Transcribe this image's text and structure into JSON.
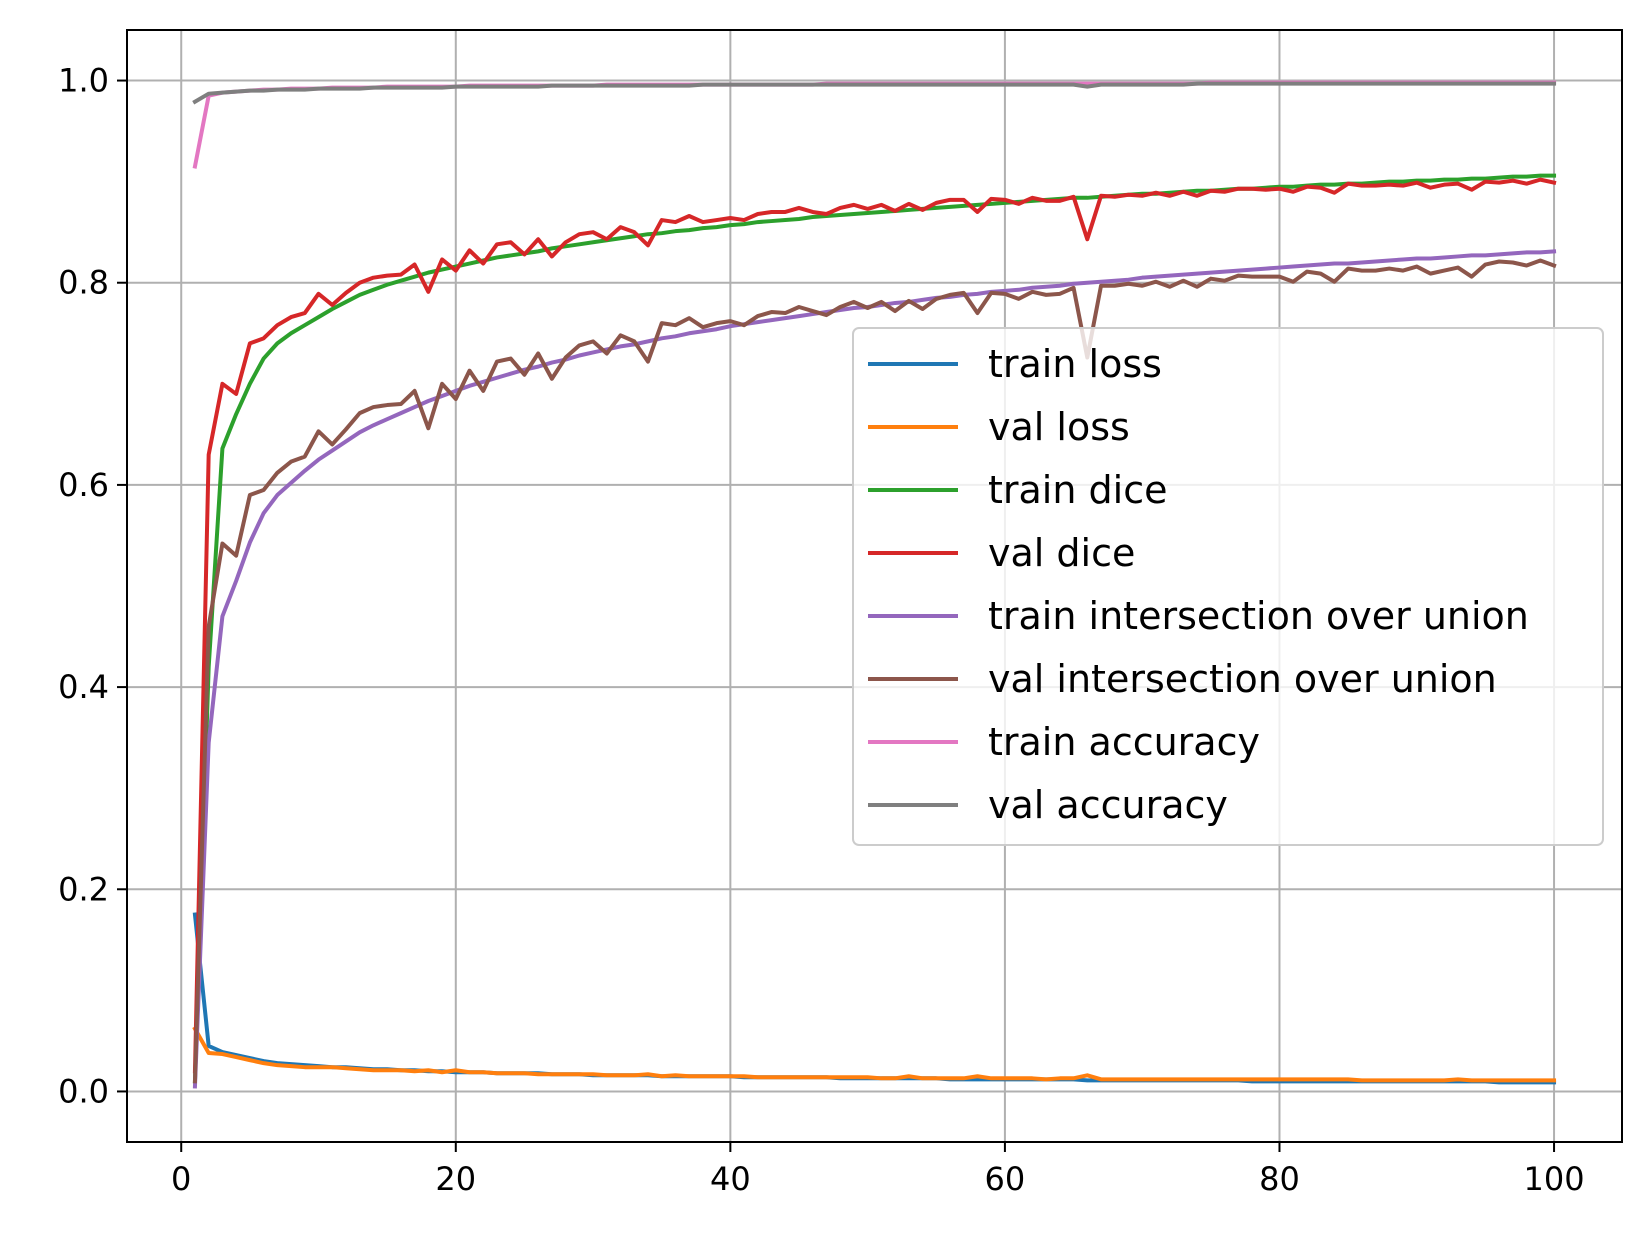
{
  "chart_data": {
    "type": "line",
    "title": "",
    "xlabel": "",
    "ylabel": "",
    "xlim": [
      -3.95,
      104.95
    ],
    "ylim": [
      -0.05,
      1.05
    ],
    "xticks": [
      0,
      20,
      40,
      60,
      80,
      100
    ],
    "xtick_labels": [
      "0",
      "20",
      "40",
      "60",
      "80",
      "100"
    ],
    "yticks": [
      0.0,
      0.2,
      0.4,
      0.6,
      0.8,
      1.0
    ],
    "ytick_labels": [
      "0.0",
      "0.2",
      "0.4",
      "0.6",
      "0.8",
      "1.0"
    ],
    "grid": true,
    "legend_position": "center-right",
    "x": [
      1,
      2,
      3,
      4,
      5,
      6,
      7,
      8,
      9,
      10,
      11,
      12,
      13,
      14,
      15,
      16,
      17,
      18,
      19,
      20,
      21,
      22,
      23,
      24,
      25,
      26,
      27,
      28,
      29,
      30,
      31,
      32,
      33,
      34,
      35,
      36,
      37,
      38,
      39,
      40,
      41,
      42,
      43,
      44,
      45,
      46,
      47,
      48,
      49,
      50,
      51,
      52,
      53,
      54,
      55,
      56,
      57,
      58,
      59,
      60,
      61,
      62,
      63,
      64,
      65,
      66,
      67,
      68,
      69,
      70,
      71,
      72,
      73,
      74,
      75,
      76,
      77,
      78,
      79,
      80,
      81,
      82,
      83,
      84,
      85,
      86,
      87,
      88,
      89,
      90,
      91,
      92,
      93,
      94,
      95,
      96,
      97,
      98,
      99,
      100
    ],
    "series": [
      {
        "name": "train loss",
        "color": "#1f77b4",
        "values": [
          0.175,
          0.045,
          0.039,
          0.036,
          0.033,
          0.03,
          0.028,
          0.027,
          0.026,
          0.025,
          0.024,
          0.024,
          0.023,
          0.022,
          0.022,
          0.021,
          0.021,
          0.02,
          0.02,
          0.019,
          0.019,
          0.019,
          0.018,
          0.018,
          0.018,
          0.018,
          0.017,
          0.017,
          0.017,
          0.016,
          0.016,
          0.016,
          0.016,
          0.016,
          0.015,
          0.015,
          0.015,
          0.015,
          0.015,
          0.015,
          0.014,
          0.014,
          0.014,
          0.014,
          0.014,
          0.014,
          0.014,
          0.013,
          0.013,
          0.013,
          0.013,
          0.013,
          0.013,
          0.013,
          0.013,
          0.012,
          0.012,
          0.012,
          0.012,
          0.012,
          0.012,
          0.012,
          0.012,
          0.012,
          0.012,
          0.011,
          0.011,
          0.011,
          0.011,
          0.011,
          0.011,
          0.011,
          0.011,
          0.011,
          0.011,
          0.011,
          0.011,
          0.01,
          0.01,
          0.01,
          0.01,
          0.01,
          0.01,
          0.01,
          0.01,
          0.01,
          0.01,
          0.01,
          0.01,
          0.01,
          0.01,
          0.01,
          0.01,
          0.01,
          0.01,
          0.009,
          0.009,
          0.009,
          0.009,
          0.009
        ]
      },
      {
        "name": "val loss",
        "color": "#ff7f0e",
        "values": [
          0.062,
          0.038,
          0.037,
          0.034,
          0.031,
          0.028,
          0.026,
          0.025,
          0.024,
          0.024,
          0.024,
          0.023,
          0.022,
          0.021,
          0.021,
          0.021,
          0.02,
          0.021,
          0.019,
          0.021,
          0.019,
          0.019,
          0.018,
          0.018,
          0.018,
          0.017,
          0.017,
          0.017,
          0.017,
          0.017,
          0.016,
          0.016,
          0.016,
          0.017,
          0.015,
          0.016,
          0.015,
          0.015,
          0.015,
          0.015,
          0.015,
          0.014,
          0.014,
          0.014,
          0.014,
          0.014,
          0.014,
          0.014,
          0.014,
          0.014,
          0.013,
          0.013,
          0.015,
          0.013,
          0.013,
          0.013,
          0.013,
          0.015,
          0.013,
          0.013,
          0.013,
          0.013,
          0.012,
          0.013,
          0.013,
          0.016,
          0.012,
          0.012,
          0.012,
          0.012,
          0.012,
          0.012,
          0.012,
          0.012,
          0.012,
          0.012,
          0.012,
          0.012,
          0.012,
          0.012,
          0.012,
          0.012,
          0.012,
          0.012,
          0.012,
          0.011,
          0.011,
          0.011,
          0.011,
          0.011,
          0.011,
          0.011,
          0.012,
          0.011,
          0.011,
          0.011,
          0.011,
          0.011,
          0.011,
          0.011
        ]
      },
      {
        "name": "train dice",
        "color": "#2ca02c",
        "values": [
          0.01,
          0.42,
          0.636,
          0.67,
          0.7,
          0.725,
          0.74,
          0.75,
          0.758,
          0.766,
          0.774,
          0.781,
          0.788,
          0.793,
          0.798,
          0.802,
          0.806,
          0.81,
          0.813,
          0.816,
          0.819,
          0.822,
          0.825,
          0.827,
          0.829,
          0.831,
          0.834,
          0.836,
          0.838,
          0.84,
          0.842,
          0.844,
          0.846,
          0.848,
          0.849,
          0.851,
          0.852,
          0.854,
          0.855,
          0.857,
          0.858,
          0.86,
          0.861,
          0.862,
          0.863,
          0.865,
          0.866,
          0.867,
          0.868,
          0.869,
          0.87,
          0.871,
          0.872,
          0.873,
          0.874,
          0.875,
          0.876,
          0.877,
          0.878,
          0.879,
          0.88,
          0.881,
          0.882,
          0.883,
          0.884,
          0.884,
          0.885,
          0.886,
          0.887,
          0.888,
          0.888,
          0.889,
          0.89,
          0.891,
          0.891,
          0.892,
          0.893,
          0.893,
          0.894,
          0.895,
          0.895,
          0.896,
          0.897,
          0.897,
          0.898,
          0.898,
          0.899,
          0.9,
          0.9,
          0.901,
          0.901,
          0.902,
          0.902,
          0.903,
          0.903,
          0.904,
          0.905,
          0.905,
          0.906,
          0.906
        ]
      },
      {
        "name": "val dice",
        "color": "#d62728",
        "values": [
          0.02,
          0.63,
          0.7,
          0.69,
          0.74,
          0.745,
          0.758,
          0.766,
          0.77,
          0.789,
          0.778,
          0.79,
          0.8,
          0.805,
          0.807,
          0.808,
          0.818,
          0.791,
          0.823,
          0.812,
          0.832,
          0.819,
          0.838,
          0.84,
          0.828,
          0.843,
          0.826,
          0.84,
          0.848,
          0.85,
          0.843,
          0.855,
          0.85,
          0.837,
          0.862,
          0.86,
          0.866,
          0.86,
          0.862,
          0.864,
          0.862,
          0.868,
          0.87,
          0.87,
          0.874,
          0.87,
          0.868,
          0.874,
          0.877,
          0.873,
          0.877,
          0.871,
          0.878,
          0.872,
          0.879,
          0.882,
          0.882,
          0.87,
          0.883,
          0.882,
          0.878,
          0.884,
          0.881,
          0.881,
          0.885,
          0.843,
          0.886,
          0.885,
          0.887,
          0.886,
          0.889,
          0.886,
          0.89,
          0.886,
          0.891,
          0.89,
          0.893,
          0.893,
          0.892,
          0.893,
          0.89,
          0.895,
          0.894,
          0.889,
          0.898,
          0.896,
          0.896,
          0.897,
          0.896,
          0.899,
          0.894,
          0.897,
          0.898,
          0.892,
          0.9,
          0.899,
          0.901,
          0.898,
          0.902,
          0.899
        ]
      },
      {
        "name": "train intersection over union",
        "color": "#9467bd",
        "values": [
          0.005,
          0.345,
          0.47,
          0.505,
          0.543,
          0.572,
          0.59,
          0.602,
          0.614,
          0.625,
          0.634,
          0.643,
          0.652,
          0.659,
          0.665,
          0.671,
          0.677,
          0.683,
          0.688,
          0.693,
          0.698,
          0.702,
          0.706,
          0.71,
          0.714,
          0.717,
          0.721,
          0.724,
          0.728,
          0.731,
          0.734,
          0.737,
          0.739,
          0.742,
          0.745,
          0.747,
          0.75,
          0.752,
          0.754,
          0.757,
          0.759,
          0.761,
          0.763,
          0.765,
          0.767,
          0.769,
          0.771,
          0.773,
          0.775,
          0.776,
          0.778,
          0.78,
          0.781,
          0.783,
          0.785,
          0.786,
          0.788,
          0.789,
          0.791,
          0.792,
          0.793,
          0.795,
          0.796,
          0.797,
          0.799,
          0.8,
          0.801,
          0.802,
          0.803,
          0.805,
          0.806,
          0.807,
          0.808,
          0.809,
          0.81,
          0.811,
          0.812,
          0.813,
          0.814,
          0.815,
          0.816,
          0.817,
          0.818,
          0.819,
          0.819,
          0.82,
          0.821,
          0.822,
          0.823,
          0.824,
          0.824,
          0.825,
          0.826,
          0.827,
          0.827,
          0.828,
          0.829,
          0.83,
          0.83,
          0.831
        ]
      },
      {
        "name": "val intersection over union",
        "color": "#8c564b",
        "values": [
          0.01,
          0.46,
          0.542,
          0.53,
          0.59,
          0.595,
          0.612,
          0.623,
          0.628,
          0.653,
          0.64,
          0.655,
          0.671,
          0.677,
          0.679,
          0.68,
          0.693,
          0.656,
          0.7,
          0.685,
          0.713,
          0.693,
          0.722,
          0.725,
          0.709,
          0.73,
          0.705,
          0.726,
          0.738,
          0.742,
          0.73,
          0.748,
          0.742,
          0.722,
          0.76,
          0.758,
          0.765,
          0.756,
          0.76,
          0.762,
          0.758,
          0.767,
          0.771,
          0.77,
          0.776,
          0.772,
          0.768,
          0.776,
          0.781,
          0.775,
          0.781,
          0.772,
          0.782,
          0.774,
          0.784,
          0.788,
          0.79,
          0.77,
          0.79,
          0.789,
          0.784,
          0.791,
          0.788,
          0.789,
          0.795,
          0.726,
          0.797,
          0.797,
          0.799,
          0.797,
          0.801,
          0.796,
          0.802,
          0.796,
          0.804,
          0.802,
          0.807,
          0.806,
          0.806,
          0.806,
          0.801,
          0.811,
          0.809,
          0.801,
          0.814,
          0.812,
          0.812,
          0.814,
          0.812,
          0.816,
          0.809,
          0.812,
          0.815,
          0.806,
          0.818,
          0.821,
          0.82,
          0.817,
          0.822,
          0.817
        ]
      },
      {
        "name": "train accuracy",
        "color": "#e377c2",
        "values": [
          0.915,
          0.985,
          0.988,
          0.989,
          0.99,
          0.991,
          0.991,
          0.992,
          0.992,
          0.992,
          0.993,
          0.993,
          0.993,
          0.993,
          0.994,
          0.994,
          0.994,
          0.994,
          0.994,
          0.994,
          0.995,
          0.995,
          0.995,
          0.995,
          0.995,
          0.995,
          0.995,
          0.995,
          0.995,
          0.995,
          0.996,
          0.996,
          0.996,
          0.996,
          0.996,
          0.996,
          0.996,
          0.996,
          0.996,
          0.996,
          0.996,
          0.996,
          0.996,
          0.996,
          0.996,
          0.996,
          0.997,
          0.997,
          0.997,
          0.997,
          0.997,
          0.997,
          0.997,
          0.997,
          0.997,
          0.997,
          0.997,
          0.997,
          0.997,
          0.997,
          0.997,
          0.997,
          0.997,
          0.997,
          0.997,
          0.997,
          0.997,
          0.997,
          0.997,
          0.997,
          0.997,
          0.997,
          0.997,
          0.997,
          0.998,
          0.998,
          0.998,
          0.998,
          0.998,
          0.998,
          0.998,
          0.998,
          0.998,
          0.998,
          0.998,
          0.998,
          0.998,
          0.998,
          0.998,
          0.998,
          0.998,
          0.998,
          0.998,
          0.998,
          0.998,
          0.998,
          0.998,
          0.998,
          0.998,
          0.998
        ]
      },
      {
        "name": "val accuracy",
        "color": "#7f7f7f",
        "values": [
          0.979,
          0.987,
          0.988,
          0.989,
          0.99,
          0.99,
          0.991,
          0.991,
          0.991,
          0.992,
          0.992,
          0.992,
          0.992,
          0.993,
          0.993,
          0.993,
          0.993,
          0.993,
          0.993,
          0.994,
          0.994,
          0.994,
          0.994,
          0.994,
          0.994,
          0.994,
          0.995,
          0.995,
          0.995,
          0.995,
          0.995,
          0.995,
          0.995,
          0.995,
          0.995,
          0.995,
          0.995,
          0.996,
          0.996,
          0.996,
          0.996,
          0.996,
          0.996,
          0.996,
          0.996,
          0.996,
          0.996,
          0.996,
          0.996,
          0.996,
          0.996,
          0.996,
          0.996,
          0.996,
          0.996,
          0.996,
          0.996,
          0.996,
          0.996,
          0.996,
          0.996,
          0.996,
          0.996,
          0.996,
          0.996,
          0.994,
          0.996,
          0.996,
          0.996,
          0.996,
          0.996,
          0.996,
          0.996,
          0.997,
          0.997,
          0.997,
          0.997,
          0.997,
          0.997,
          0.997,
          0.997,
          0.997,
          0.997,
          0.997,
          0.997,
          0.997,
          0.997,
          0.997,
          0.997,
          0.997,
          0.997,
          0.997,
          0.997,
          0.997,
          0.997,
          0.997,
          0.997,
          0.997,
          0.997,
          0.997
        ]
      }
    ]
  }
}
